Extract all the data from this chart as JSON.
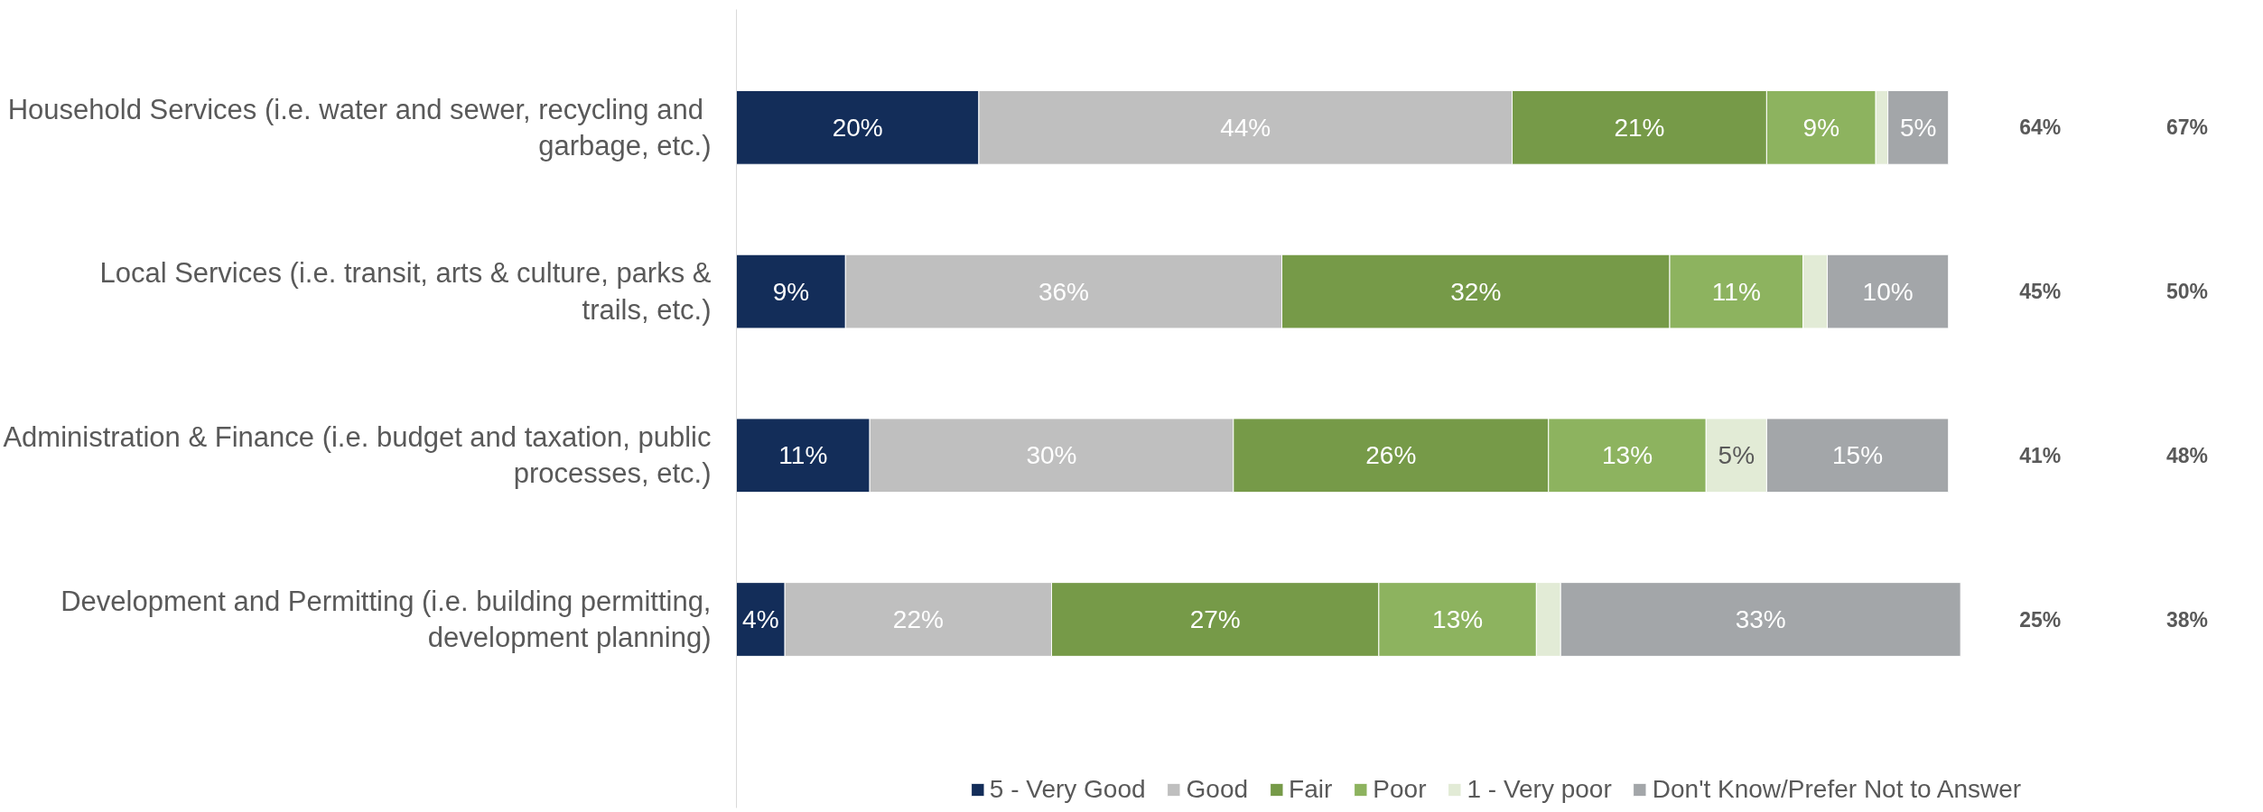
{
  "chart_data": {
    "type": "bar",
    "orientation": "horizontal",
    "stacked": true,
    "grid": false,
    "legend": "bottom",
    "tick_labels": "y",
    "categories": [
      "Household Services (i.e.  water and sewer, recycling and garbage, etc.)",
      "Local Services (i.e. transit, arts & culture, parks & trails, etc.)",
      "Administration & Finance (i.e. budget and taxation, public processes, etc.)",
      "Development and Permitting (i.e. building permitting, development planning)"
    ],
    "series": [
      {
        "name": "5 - Very Good",
        "color": "#132d59",
        "values": [
          20,
          9,
          11,
          4
        ],
        "value_labels": [
          "20%",
          "9%",
          "11%",
          "4%"
        ]
      },
      {
        "name": "Good",
        "color": "#bfbfbf",
        "values": [
          44,
          36,
          30,
          22
        ],
        "value_labels": [
          "44%",
          "36%",
          "30%",
          "22%"
        ]
      },
      {
        "name": "Fair",
        "color": "#769a48",
        "values": [
          21,
          32,
          26,
          27
        ],
        "value_labels": [
          "21%",
          "32%",
          "26%",
          "27%"
        ]
      },
      {
        "name": "Poor",
        "color": "#8db35f",
        "values": [
          9,
          11,
          13,
          13
        ],
        "value_labels": [
          "9%",
          "11%",
          "13%",
          "13%"
        ]
      },
      {
        "name": "1 - Very poor",
        "color": "#e2ebd6",
        "values": [
          1,
          2,
          5,
          2
        ],
        "value_labels": [
          null,
          null,
          "5%",
          null
        ]
      },
      {
        "name": "Don't Know/Prefer Not to Answer",
        "color": "#a3a6a9",
        "values": [
          5,
          10,
          15,
          33
        ],
        "value_labels": [
          "5%",
          "10%",
          "15%",
          "33%"
        ]
      }
    ],
    "annotations": [
      "64%",
      "67%",
      "45%",
      "50%",
      "41%",
      "48%",
      "25%",
      "38%"
    ]
  }
}
